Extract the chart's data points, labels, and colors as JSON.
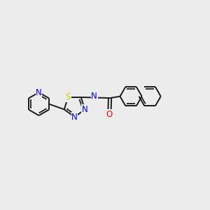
{
  "bg_color": "#ececec",
  "bond_color": "#1a1a1a",
  "bond_width": 1.4,
  "atom_colors": {
    "N": "#0000ff",
    "S": "#cccc00",
    "O": "#ff0000",
    "H": "#3a7a7a",
    "C": "#1a1a1a"
  },
  "font_size_atom": 8.5,
  "figsize": [
    3.0,
    3.0
  ],
  "dpi": 100,
  "xlim": [
    0,
    10
  ],
  "ylim": [
    0,
    10
  ]
}
